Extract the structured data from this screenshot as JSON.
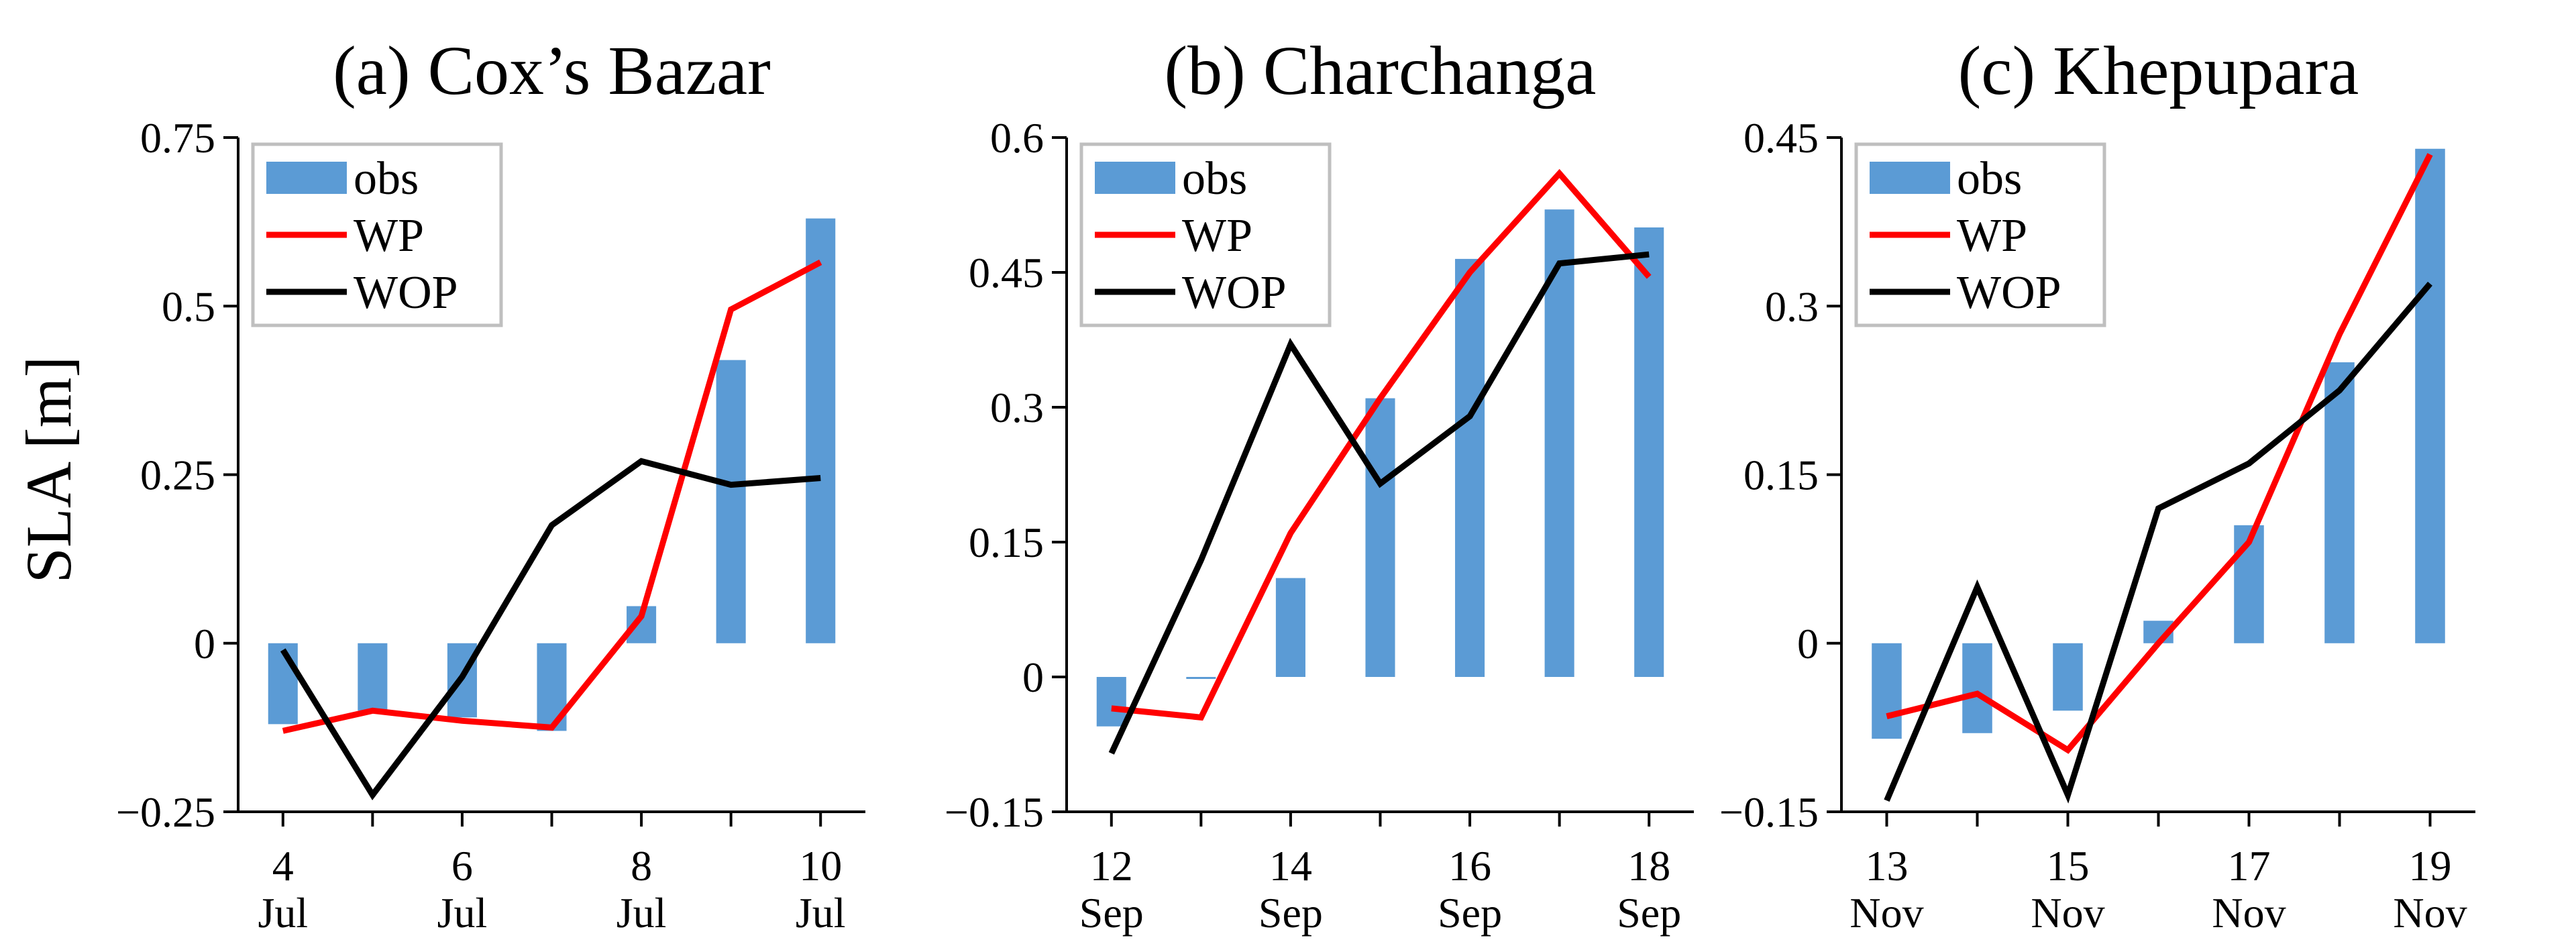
{
  "figure": {
    "ylabel": "SLA [m]",
    "colors": {
      "obs": "#5b9bd5",
      "WP": "#ff0000",
      "WOP": "#000000",
      "legend_border": "#bfbfbf"
    },
    "legend_labels": [
      "obs",
      "WP",
      "WOP"
    ]
  },
  "chart_data": [
    {
      "type": "bar+line",
      "title": "(a) Cox’s Bazar",
      "ylim": [
        -0.25,
        0.75
      ],
      "yticks": [
        0.75,
        0.5,
        0.25,
        0,
        -0.25
      ],
      "ytick_labels": [
        "0.75",
        "0.5",
        "0.25",
        "0",
        "−0.25"
      ],
      "categories": [
        "4 Jul",
        "5 Jul",
        "6 Jul",
        "7 Jul",
        "8 Jul",
        "9 Jul",
        "10 Jul"
      ],
      "xtick_labels": [
        {
          "day": "4",
          "month": "Jul",
          "index": 0
        },
        {
          "day": "6",
          "month": "Jul",
          "index": 2
        },
        {
          "day": "8",
          "month": "Jul",
          "index": 4
        },
        {
          "day": "10",
          "month": "Jul",
          "index": 6
        }
      ],
      "series": [
        {
          "name": "obs",
          "kind": "bar",
          "values": [
            -0.12,
            -0.1,
            -0.11,
            -0.13,
            0.055,
            0.42,
            0.63
          ]
        },
        {
          "name": "WP",
          "kind": "line",
          "values": [
            -0.13,
            -0.1,
            -0.115,
            -0.125,
            0.04,
            0.495,
            0.565
          ]
        },
        {
          "name": "WOP",
          "kind": "line",
          "values": [
            -0.01,
            -0.225,
            -0.05,
            0.175,
            0.27,
            0.235,
            0.245
          ]
        }
      ]
    },
    {
      "type": "bar+line",
      "title": "(b) Charchanga",
      "ylim": [
        -0.15,
        0.6
      ],
      "yticks": [
        0.6,
        0.45,
        0.3,
        0.15,
        0,
        -0.15
      ],
      "ytick_labels": [
        "0.6",
        "0.45",
        "0.3",
        "0.15",
        "0",
        "−0.15"
      ],
      "categories": [
        "12 Sep",
        "13 Sep",
        "14 Sep",
        "15 Sep",
        "16 Sep",
        "17 Sep",
        "18 Sep"
      ],
      "xtick_labels": [
        {
          "day": "12",
          "month": "Sep",
          "index": 0
        },
        {
          "day": "14",
          "month": "Sep",
          "index": 2
        },
        {
          "day": "16",
          "month": "Sep",
          "index": 4
        },
        {
          "day": "18",
          "month": "Sep",
          "index": 6
        }
      ],
      "series": [
        {
          "name": "obs",
          "kind": "bar",
          "values": [
            -0.055,
            -0.002,
            0.11,
            0.31,
            0.465,
            0.52,
            0.5
          ]
        },
        {
          "name": "WP",
          "kind": "line",
          "values": [
            -0.035,
            -0.045,
            0.16,
            0.31,
            0.45,
            0.56,
            0.445
          ]
        },
        {
          "name": "WOP",
          "kind": "line",
          "values": [
            -0.085,
            0.13,
            0.37,
            0.215,
            0.29,
            0.46,
            0.47
          ]
        }
      ]
    },
    {
      "type": "bar+line",
      "title": "(c) Khepupara",
      "ylim": [
        -0.15,
        0.45
      ],
      "yticks": [
        0.45,
        0.3,
        0.15,
        0,
        -0.15
      ],
      "ytick_labels": [
        "0.45",
        "0.3",
        "0.15",
        "0",
        "−0.15"
      ],
      "categories": [
        "13 Nov",
        "14 Nov",
        "15 Nov",
        "16 Nov",
        "17 Nov",
        "18 Nov",
        "19 Nov"
      ],
      "xtick_labels": [
        {
          "day": "13",
          "month": "Nov",
          "index": 0
        },
        {
          "day": "15",
          "month": "Nov",
          "index": 2
        },
        {
          "day": "17",
          "month": "Nov",
          "index": 4
        },
        {
          "day": "19",
          "month": "Nov",
          "index": 6
        }
      ],
      "series": [
        {
          "name": "obs",
          "kind": "bar",
          "values": [
            -0.085,
            -0.08,
            -0.06,
            0.02,
            0.105,
            0.25,
            0.44
          ]
        },
        {
          "name": "WP",
          "kind": "line",
          "values": [
            -0.065,
            -0.045,
            -0.095,
            0.0,
            0.09,
            0.275,
            0.435
          ]
        },
        {
          "name": "WOP",
          "kind": "line",
          "values": [
            -0.14,
            0.05,
            -0.135,
            0.12,
            0.16,
            0.225,
            0.32
          ]
        }
      ]
    }
  ]
}
